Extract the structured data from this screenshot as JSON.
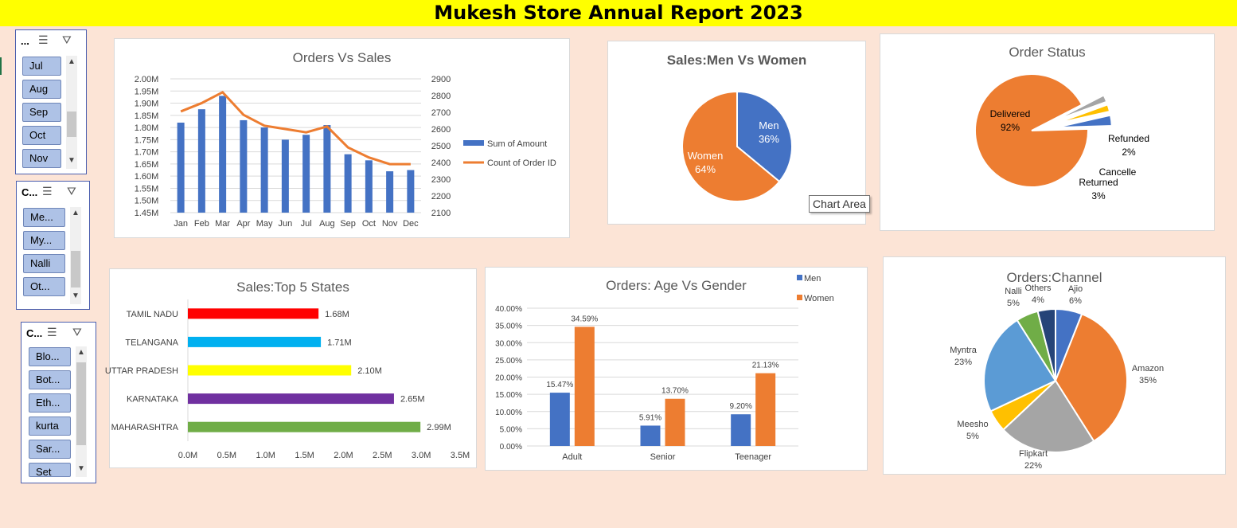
{
  "title": "Mukesh Store Annual Report 2023",
  "tooltip": "Chart Area",
  "slicers": [
    {
      "header": "...",
      "items": [
        "Jul",
        "Aug",
        "Sep",
        "Oct",
        "Nov"
      ]
    },
    {
      "header": "C...",
      "items": [
        "Me...",
        "My...",
        "Nalli",
        "Ot..."
      ]
    },
    {
      "header": "C...",
      "items": [
        "Blo...",
        "Bot...",
        "Eth...",
        "kurta",
        "Sar...",
        "Set"
      ]
    }
  ],
  "chart_data": [
    {
      "type": "bar",
      "title": "Orders Vs Sales",
      "categories": [
        "Jan",
        "Feb",
        "Mar",
        "Apr",
        "May",
        "Jun",
        "Jul",
        "Aug",
        "Sep",
        "Oct",
        "Nov",
        "Dec"
      ],
      "series": [
        {
          "name": "Sum of Amount",
          "type": "bar",
          "axis": "left",
          "color": "#4472C4",
          "values": [
            1.82,
            1.875,
            1.93,
            1.83,
            1.8,
            1.75,
            1.77,
            1.81,
            1.69,
            1.665,
            1.62,
            1.625
          ]
        },
        {
          "name": "Count of Order ID",
          "type": "line",
          "axis": "right",
          "color": "#ED7D31",
          "values": [
            2705,
            2755,
            2820,
            2685,
            2620,
            2600,
            2580,
            2615,
            2490,
            2430,
            2390,
            2390
          ]
        }
      ],
      "y_left": {
        "min": 1.45,
        "max": 2.0,
        "ticks": [
          "1.45M",
          "1.50M",
          "1.55M",
          "1.60M",
          "1.65M",
          "1.70M",
          "1.75M",
          "1.80M",
          "1.85M",
          "1.90M",
          "1.95M",
          "2.00M"
        ]
      },
      "y_right": {
        "min": 2100,
        "max": 2900,
        "ticks": [
          "2100",
          "2200",
          "2300",
          "2400",
          "2500",
          "2600",
          "2700",
          "2800",
          "2900"
        ]
      },
      "legend": "right",
      "grid": true
    },
    {
      "type": "pie",
      "title": "Sales:Men Vs Women",
      "slices": [
        {
          "name": "Men",
          "value": 36,
          "label": "36%",
          "color": "#4472C4"
        },
        {
          "name": "Women",
          "value": 64,
          "label": "64%",
          "color": "#ED7D31"
        }
      ]
    },
    {
      "type": "pie",
      "title": "Order Status",
      "slices": [
        {
          "name": "Delivered",
          "value": 92,
          "label": "92%",
          "color": "#ED7D31"
        },
        {
          "name": "Refunded",
          "value": 2,
          "label": "2%",
          "color": "#A5A5A5"
        },
        {
          "name": "Cancelle",
          "value": 2,
          "label": "",
          "color": "#FFC000"
        },
        {
          "name": "Returned",
          "value": 3,
          "label": "3%",
          "color": "#4472C4"
        }
      ]
    },
    {
      "type": "bar",
      "orientation": "horizontal",
      "title": "Sales:Top 5 States",
      "categories": [
        "TAMIL NADU",
        "TELANGANA",
        "UTTAR PRADESH",
        "KARNATAKA",
        "MAHARASHTRA"
      ],
      "values": [
        1.68,
        1.71,
        2.1,
        2.65,
        2.99
      ],
      "labels": [
        "1.68M",
        "1.71M",
        "2.10M",
        "2.65M",
        "2.99M"
      ],
      "colors": [
        "#FF0000",
        "#00B0F0",
        "#FFFF00",
        "#7030A0",
        "#70AD47"
      ],
      "xlim": [
        0,
        3.5
      ],
      "ticks": [
        "0.0M",
        "0.5M",
        "1.0M",
        "1.5M",
        "2.0M",
        "2.5M",
        "3.0M",
        "3.5M"
      ]
    },
    {
      "type": "bar",
      "title": "Orders: Age Vs Gender",
      "categories": [
        "Adult",
        "Senior",
        "Teenager"
      ],
      "series": [
        {
          "name": "Men",
          "values": [
            15.47,
            5.91,
            9.2
          ],
          "labels": [
            "15.47%",
            "5.91%",
            "9.20%"
          ],
          "color": "#4472C4"
        },
        {
          "name": "Women",
          "values": [
            34.59,
            13.7,
            21.13
          ],
          "labels": [
            "34.59%",
            "13.70%",
            "21.13%"
          ],
          "color": "#ED7D31"
        }
      ],
      "ylim": [
        0,
        40
      ],
      "ticks": [
        "0.00%",
        "5.00%",
        "10.00%",
        "15.00%",
        "20.00%",
        "25.00%",
        "30.00%",
        "35.00%",
        "40.00%"
      ],
      "legend": "top-right",
      "grid": true
    },
    {
      "type": "pie",
      "title": "Orders:Channel",
      "slices": [
        {
          "name": "Ajio",
          "value": 6,
          "label": "6%",
          "color": "#4472C4"
        },
        {
          "name": "Amazon",
          "value": 35,
          "label": "35%",
          "color": "#ED7D31"
        },
        {
          "name": "Flipkart",
          "value": 22,
          "label": "22%",
          "color": "#A5A5A5"
        },
        {
          "name": "Meesho",
          "value": 5,
          "label": "5%",
          "color": "#FFC000"
        },
        {
          "name": "Myntra",
          "value": 23,
          "label": "23%",
          "color": "#5B9BD5"
        },
        {
          "name": "Nalli",
          "value": 5,
          "label": "5%",
          "color": "#70AD47"
        },
        {
          "name": "Others",
          "value": 4,
          "label": "4%",
          "color": "#264478"
        }
      ]
    }
  ]
}
